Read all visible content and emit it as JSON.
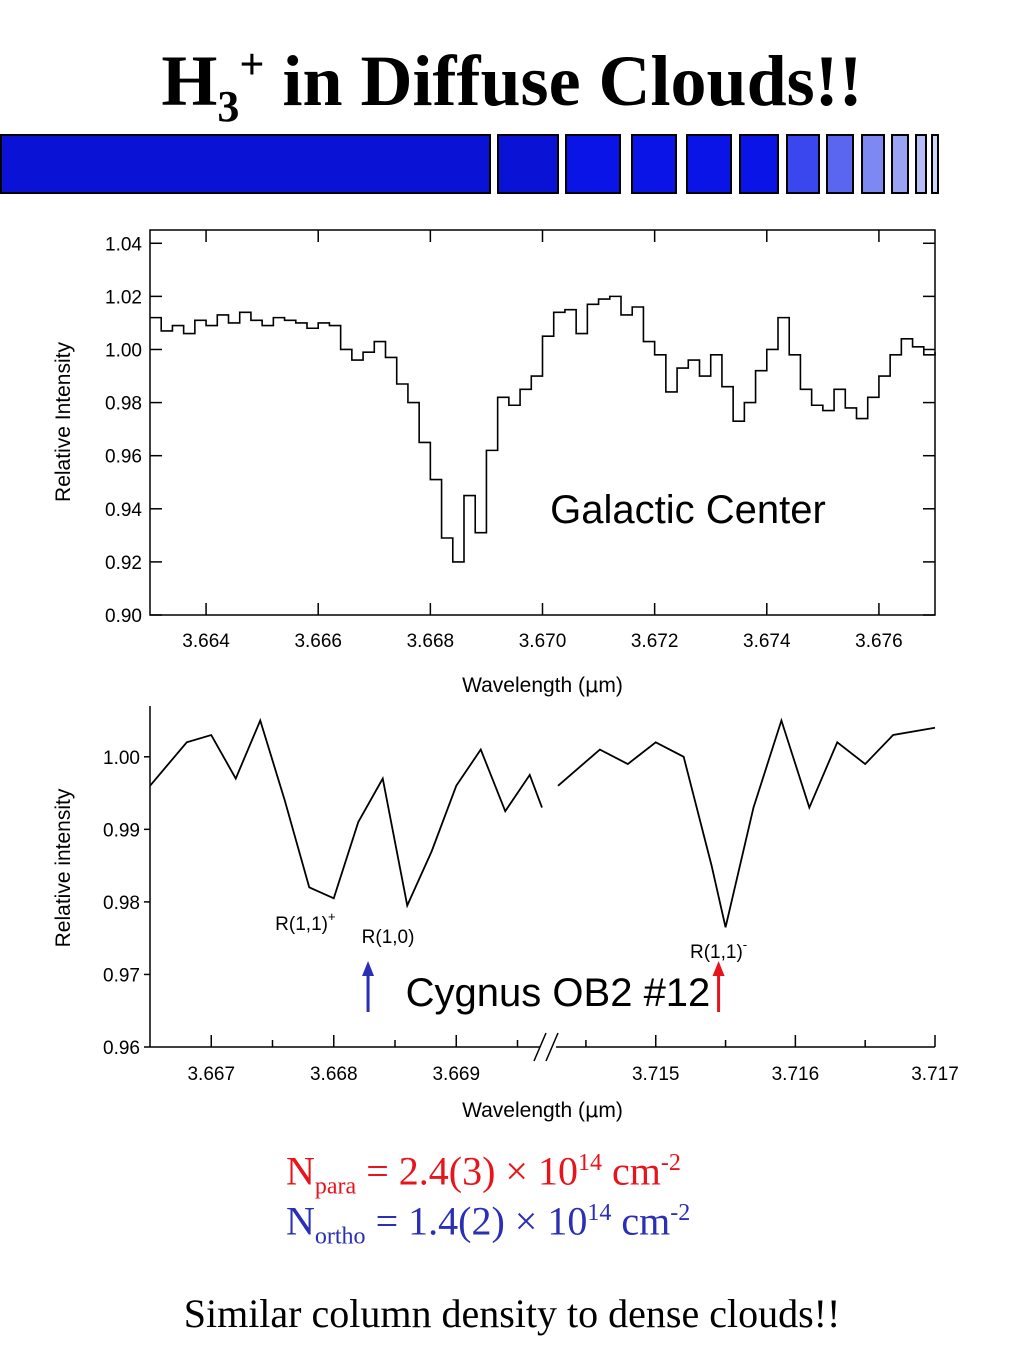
{
  "slide": {
    "title_main": "H",
    "title_sub": "3",
    "title_sup": "+",
    "title_rest": " in Diffuse Clouds!!",
    "colors": {
      "deco_bar": "#0a12d6",
      "para": "#e8141b",
      "ortho": "#2b2fb5"
    },
    "equations": {
      "para": {
        "symbol": "N",
        "sub": "para",
        "eq": " = 2.4(3) × 10",
        "exp": "14",
        "unit": " cm",
        "unit_exp": "-2"
      },
      "ortho": {
        "symbol": "N",
        "sub": "ortho",
        "eq": " = 1.4(2) × 10",
        "exp": "14",
        "unit": " cm",
        "unit_exp": "-2"
      }
    },
    "footer": "Similar column density to dense clouds!!"
  },
  "chart_data": [
    {
      "type": "line",
      "style": "step",
      "annotation": "Galactic Center",
      "xlabel_prefix": "Wavelength (",
      "xlabel_mu": "μ",
      "xlabel_suffix": "m)",
      "ylabel": "Relative Intensity",
      "xlim": [
        3.663,
        3.677
      ],
      "ylim": [
        0.9,
        1.045
      ],
      "xticks": [
        "3.664",
        "3.666",
        "3.668",
        "3.670",
        "3.672",
        "3.674",
        "3.676"
      ],
      "yticks": [
        "0.90",
        "0.92",
        "0.94",
        "0.96",
        "0.98",
        "1.00",
        "1.02",
        "1.04"
      ],
      "series": [
        {
          "x": [
            3.663,
            3.6632,
            3.6634,
            3.6636,
            3.6638,
            3.664,
            3.6642,
            3.6644,
            3.6646,
            3.6648,
            3.665,
            3.6652,
            3.6654,
            3.6656,
            3.6658,
            3.666,
            3.6662,
            3.6664,
            3.6666,
            3.6668,
            3.667,
            3.6672,
            3.6674,
            3.6676,
            3.6678,
            3.668,
            3.6682,
            3.6684,
            3.6686,
            3.6688,
            3.669,
            3.6692,
            3.6694,
            3.6696,
            3.6698,
            3.67,
            3.6702,
            3.6704,
            3.6706,
            3.6708,
            3.671,
            3.6712,
            3.6714,
            3.6716,
            3.6718,
            3.672,
            3.6722,
            3.6724,
            3.6726,
            3.6728,
            3.673,
            3.6732,
            3.6734,
            3.6736,
            3.6738,
            3.674,
            3.6742,
            3.6744,
            3.6746,
            3.6748,
            3.675,
            3.6752,
            3.6754,
            3.6756,
            3.6758,
            3.676,
            3.6762,
            3.6764,
            3.6766,
            3.6768,
            3.677
          ],
          "y": [
            1.012,
            1.007,
            1.009,
            1.006,
            1.011,
            1.009,
            1.013,
            1.01,
            1.014,
            1.011,
            1.009,
            1.012,
            1.011,
            1.01,
            1.008,
            1.01,
            1.009,
            1.0,
            0.996,
            0.999,
            1.003,
            0.997,
            0.987,
            0.98,
            0.965,
            0.951,
            0.929,
            0.92,
            0.945,
            0.931,
            0.962,
            0.982,
            0.979,
            0.985,
            0.99,
            1.005,
            1.014,
            1.015,
            1.006,
            1.017,
            1.019,
            1.02,
            1.013,
            1.016,
            1.003,
            0.998,
            0.984,
            0.993,
            0.996,
            0.99,
            0.998,
            0.986,
            0.973,
            0.98,
            0.992,
            1.0,
            1.012,
            0.998,
            0.985,
            0.979,
            0.977,
            0.985,
            0.978,
            0.974,
            0.982,
            0.99,
            0.998,
            1.004,
            1.001,
            0.998,
            0.999
          ]
        }
      ]
    },
    {
      "type": "line",
      "style": "broken-axis",
      "annotation": "Cygnus OB2 #12",
      "xlabel_prefix": "Wavelength (",
      "xlabel_mu": "μ",
      "xlabel_suffix": "m)",
      "ylabel": "Relative intensity",
      "ylim": [
        0.96,
        1.007
      ],
      "yticks": [
        "0.96",
        "0.97",
        "0.98",
        "0.99",
        "1.00"
      ],
      "segments": [
        {
          "xlim": [
            3.6665,
            3.6697
          ],
          "xticks": [
            "3.667",
            "3.668",
            "3.669"
          ],
          "x": [
            3.6665,
            3.6668,
            3.667,
            3.6672,
            3.6674,
            3.6676,
            3.6678,
            3.668,
            3.6682,
            3.6684,
            3.6686,
            3.6688,
            3.669,
            3.6692,
            3.6694,
            3.6696,
            3.6697
          ],
          "y": [
            0.996,
            1.002,
            1.003,
            0.997,
            1.005,
            0.994,
            0.982,
            0.9805,
            0.991,
            0.997,
            0.9795,
            0.987,
            0.996,
            1.001,
            0.9925,
            0.9975,
            0.993
          ]
        },
        {
          "xlim": [
            3.7143,
            3.717
          ],
          "xticks": [
            "3.715",
            "3.716",
            "3.717"
          ],
          "x": [
            3.7143,
            3.7146,
            3.7148,
            3.715,
            3.7152,
            3.7154,
            3.7155,
            3.7157,
            3.7159,
            3.7161,
            3.7163,
            3.7165,
            3.7167,
            3.717
          ],
          "y": [
            0.996,
            1.001,
            0.999,
            1.002,
            1.0,
            0.985,
            0.9765,
            0.993,
            1.005,
            0.993,
            1.002,
            0.999,
            1.003,
            1.004
          ]
        }
      ],
      "lines": [
        {
          "label": "R(1,1)",
          "sup": "+",
          "x": 3.66785,
          "color": "#000000"
        },
        {
          "label": "R(1,0)",
          "sup": "",
          "x": 3.66828,
          "color": "#2b2fb5"
        },
        {
          "label": "R(1,1)",
          "sup": "-",
          "x": 3.71545,
          "color": "#e8141b"
        }
      ]
    }
  ]
}
